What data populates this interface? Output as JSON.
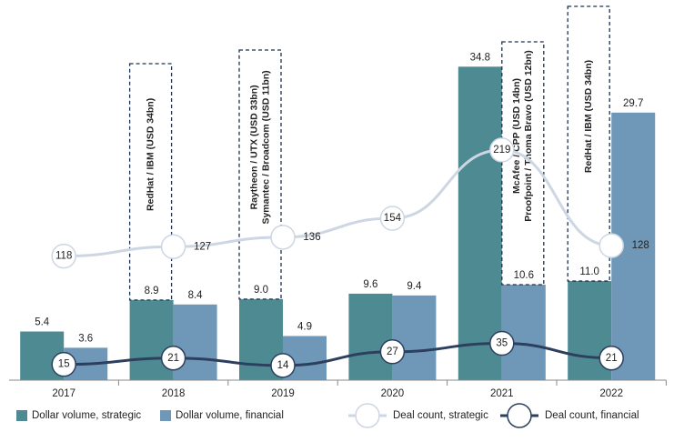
{
  "chart_data": {
    "type": "bar",
    "categories": [
      "2017",
      "2018",
      "2019",
      "2020",
      "2021",
      "2022"
    ],
    "ylim": [
      0,
      42
    ],
    "y2lim": [
      0,
      360
    ],
    "series": [
      {
        "name": "Dollar volume, strategic",
        "type": "bar",
        "color": "#4e8a92",
        "values": [
          5.4,
          8.9,
          9.0,
          9.6,
          34.8,
          11.0
        ],
        "value_labels": [
          "5.4",
          "8.9",
          "9.0",
          "9.6",
          "34.8",
          "11.0"
        ]
      },
      {
        "name": "Dollar volume, financial",
        "type": "bar",
        "color": "#6f98b8",
        "values": [
          3.6,
          8.4,
          4.9,
          9.4,
          10.6,
          29.7
        ],
        "value_labels": [
          "3.6",
          "8.4",
          "4.9",
          "9.4",
          "10.6",
          "29.7"
        ]
      },
      {
        "name": "Deal count, strategic",
        "type": "line",
        "axis": "y2",
        "color": "#cdd6e3",
        "values": [
          118,
          127,
          136,
          154,
          219,
          128
        ]
      },
      {
        "name": "Deal count, financial",
        "type": "line",
        "axis": "y2",
        "color": "#2d3f5e",
        "values": [
          15,
          21,
          14,
          27,
          35,
          21
        ]
      }
    ],
    "annotations": [
      {
        "lines": [
          "RedHat / IBM (USD 34bn)"
        ]
      },
      {
        "lines": [
          "Raytheon / UTX (USD 33bn)",
          "Symantec / Broadcom (USD 11bn)"
        ]
      },
      {
        "lines": [
          "McAfee / CPP (USD 14bn)",
          "Proofpoint / Thoma Bravo (USD 12bn)"
        ]
      },
      {
        "lines": [
          "RedHat / IBM (USD 34bn)"
        ]
      }
    ]
  }
}
